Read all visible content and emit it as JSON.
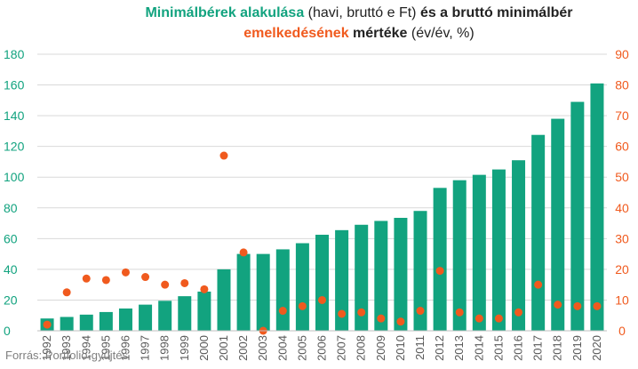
{
  "title": {
    "part1": "Minimálbérek alakulása",
    "part2": " (havi, bruttó e Ft) ",
    "part3": "és a bruttó minimálbér",
    "part4": "emelkedésének",
    "part5": " mértéke",
    "part6": " (év/év, %)"
  },
  "source": "Forrás: Portfolio-gyűjtés",
  "colors": {
    "bar": "#12a37f",
    "dot": "#f05a1e",
    "left_axis": "#12a37f",
    "right_axis": "#f05a1e",
    "grid": "#d9d9d9",
    "xtick": "#595959"
  },
  "chart_data": {
    "type": "bar",
    "categories": [
      "1992",
      "1993",
      "1994",
      "1995",
      "1996",
      "1997",
      "1998",
      "1999",
      "2000",
      "2001",
      "2002",
      "2003",
      "2004",
      "2005",
      "2006",
      "2007",
      "2008",
      "2009",
      "2010",
      "2011",
      "2012",
      "2013",
      "2014",
      "2015",
      "2016",
      "2017",
      "2018",
      "2019",
      "2020"
    ],
    "series": [
      {
        "chart": "bar",
        "axis": "left",
        "values": [
          8,
          9,
          10.5,
          12.2,
          14.5,
          17,
          19.5,
          22.5,
          25.5,
          40,
          50,
          50,
          53,
          57,
          62.5,
          65.5,
          69,
          71.5,
          73.5,
          78,
          93,
          98,
          101.5,
          105,
          111,
          127.5,
          138,
          149,
          161
        ]
      },
      {
        "chart": "scatter",
        "axis": "right",
        "values": [
          2,
          12.5,
          17,
          16.5,
          19,
          17.5,
          15,
          15.5,
          13.5,
          57,
          25.5,
          0,
          6.5,
          8,
          10,
          5.5,
          6,
          4,
          3,
          6.5,
          19.5,
          6,
          4,
          4,
          6,
          15,
          8.5,
          8,
          8
        ]
      }
    ],
    "ylim_left": [
      0,
      180
    ],
    "ylim_right": [
      0,
      90
    ],
    "left_ticks": [
      "0",
      "20",
      "40",
      "60",
      "80",
      "100",
      "120",
      "140",
      "160",
      "180"
    ],
    "right_ticks": [
      "0",
      "10",
      "20",
      "30",
      "40",
      "50",
      "60",
      "70",
      "80",
      "90"
    ],
    "grid": true,
    "xlabel": "",
    "ylabel": ""
  }
}
